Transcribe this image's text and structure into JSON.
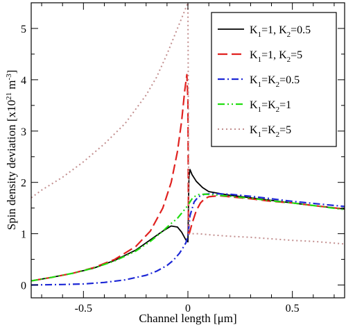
{
  "chart_data": {
    "type": "line",
    "title": "",
    "xlabel": "Channel length [μm]",
    "ylabel": {
      "main": "Spin density deviation [x10",
      "exp": "21",
      "unit": " m",
      "unit_exp": "-3",
      "close": "]"
    },
    "xlim": [
      -0.75,
      0.75
    ],
    "ylim": [
      -0.25,
      5.5
    ],
    "xticks": [
      -0.5,
      0,
      0.5
    ],
    "xtick_labels": [
      "-0.5",
      "0",
      "0.5"
    ],
    "yticks": [
      0,
      1,
      2,
      3,
      4,
      5
    ],
    "ytick_labels": [
      "0",
      "1",
      "2",
      "3",
      "4",
      "5"
    ],
    "grid": false,
    "legend_position": "top-right",
    "series": [
      {
        "name": "K1=1, K2=0.5",
        "legend": [
          {
            "t": "K"
          },
          {
            "t": "1",
            "sub": true
          },
          {
            "t": "=1, K"
          },
          {
            "t": "2",
            "sub": true
          },
          {
            "t": "=0.5"
          }
        ],
        "color": "#000000",
        "style": "solid",
        "x": [
          -0.75,
          -0.65,
          -0.55,
          -0.45,
          -0.35,
          -0.25,
          -0.18,
          -0.12,
          -0.08,
          -0.05,
          -0.03,
          -0.01,
          0.0,
          0.005,
          0.01,
          0.02,
          0.04,
          0.07,
          0.1,
          0.2,
          0.3,
          0.4,
          0.5,
          0.6,
          0.75
        ],
        "y": [
          0.08,
          0.15,
          0.23,
          0.33,
          0.48,
          0.68,
          0.88,
          1.05,
          1.15,
          1.13,
          1.03,
          0.88,
          0.84,
          2.1,
          2.25,
          2.15,
          2.02,
          1.9,
          1.82,
          1.75,
          1.7,
          1.65,
          1.6,
          1.55,
          1.48
        ]
      },
      {
        "name": "K1=1, K2=5",
        "legend": [
          {
            "t": "K"
          },
          {
            "t": "1",
            "sub": true
          },
          {
            "t": "=1, K"
          },
          {
            "t": "2",
            "sub": true
          },
          {
            "t": "=5"
          }
        ],
        "color": "#e0211f",
        "style": "dash",
        "x": [
          -0.75,
          -0.65,
          -0.55,
          -0.45,
          -0.35,
          -0.25,
          -0.18,
          -0.12,
          -0.08,
          -0.05,
          -0.03,
          -0.015,
          -0.005,
          0.0,
          0.003,
          0.01,
          0.02,
          0.04,
          0.06,
          0.08,
          0.1,
          0.15,
          0.2,
          0.3,
          0.4,
          0.5,
          0.6,
          0.75
        ],
        "y": [
          0.08,
          0.15,
          0.23,
          0.34,
          0.5,
          0.75,
          1.05,
          1.5,
          2.0,
          2.6,
          3.2,
          3.8,
          4.1,
          3.6,
          0.95,
          1.05,
          1.2,
          1.45,
          1.6,
          1.68,
          1.72,
          1.74,
          1.72,
          1.68,
          1.63,
          1.6,
          1.55,
          1.48
        ]
      },
      {
        "name": "K1=K2=0.5",
        "legend": [
          {
            "t": "K"
          },
          {
            "t": "1",
            "sub": true
          },
          {
            "t": "=K"
          },
          {
            "t": "2",
            "sub": true
          },
          {
            "t": "=0.5"
          }
        ],
        "color": "#1d28d6",
        "style": "dashdot",
        "x": [
          -0.75,
          -0.6,
          -0.5,
          -0.4,
          -0.3,
          -0.2,
          -0.15,
          -0.1,
          -0.07,
          -0.04,
          -0.02,
          -0.01,
          0.0,
          0.01,
          0.03,
          0.05,
          0.08,
          0.12,
          0.2,
          0.3,
          0.4,
          0.5,
          0.6,
          0.75
        ],
        "y": [
          0.0,
          0.01,
          0.02,
          0.05,
          0.1,
          0.19,
          0.27,
          0.38,
          0.48,
          0.62,
          0.75,
          0.82,
          0.95,
          1.35,
          1.62,
          1.72,
          1.77,
          1.78,
          1.77,
          1.73,
          1.68,
          1.63,
          1.59,
          1.53
        ]
      },
      {
        "name": "K1=K2=1",
        "legend": [
          {
            "t": "K"
          },
          {
            "t": "1",
            "sub": true
          },
          {
            "t": "=K"
          },
          {
            "t": "2",
            "sub": true
          },
          {
            "t": "=1"
          }
        ],
        "color": "#22dd11",
        "style": "dashdotdot",
        "x": [
          -0.75,
          -0.65,
          -0.55,
          -0.45,
          -0.35,
          -0.25,
          -0.18,
          -0.12,
          -0.08,
          -0.05,
          -0.03,
          -0.01,
          0.0,
          0.01,
          0.02,
          0.03,
          0.05,
          0.08,
          0.12,
          0.2,
          0.3,
          0.4,
          0.5,
          0.6,
          0.75
        ],
        "y": [
          0.08,
          0.15,
          0.23,
          0.33,
          0.47,
          0.66,
          0.85,
          1.05,
          1.2,
          1.3,
          1.4,
          1.5,
          1.55,
          1.62,
          1.68,
          1.72,
          1.76,
          1.77,
          1.76,
          1.73,
          1.69,
          1.64,
          1.6,
          1.55,
          1.47
        ]
      },
      {
        "name": "K1=K2=5",
        "legend": [
          {
            "t": "K"
          },
          {
            "t": "1",
            "sub": true
          },
          {
            "t": "=K"
          },
          {
            "t": "2",
            "sub": true
          },
          {
            "t": "=5"
          }
        ],
        "color": "#c28e8e",
        "style": "dot",
        "x": [
          -0.75,
          -0.7,
          -0.6,
          -0.5,
          -0.4,
          -0.3,
          -0.2,
          -0.15,
          -0.1,
          -0.07,
          -0.05,
          -0.03,
          -0.015,
          -0.005,
          0.0,
          0.005,
          0.02,
          0.05,
          0.1,
          0.2,
          0.3,
          0.4,
          0.5,
          0.6,
          0.75
        ],
        "y": [
          1.7,
          1.85,
          2.1,
          2.4,
          2.75,
          3.15,
          3.7,
          4.05,
          4.5,
          4.8,
          5.0,
          5.2,
          5.35,
          5.45,
          5.5,
          1.0,
          1.0,
          1.0,
          0.98,
          0.95,
          0.93,
          0.9,
          0.87,
          0.85,
          0.8
        ]
      }
    ]
  }
}
